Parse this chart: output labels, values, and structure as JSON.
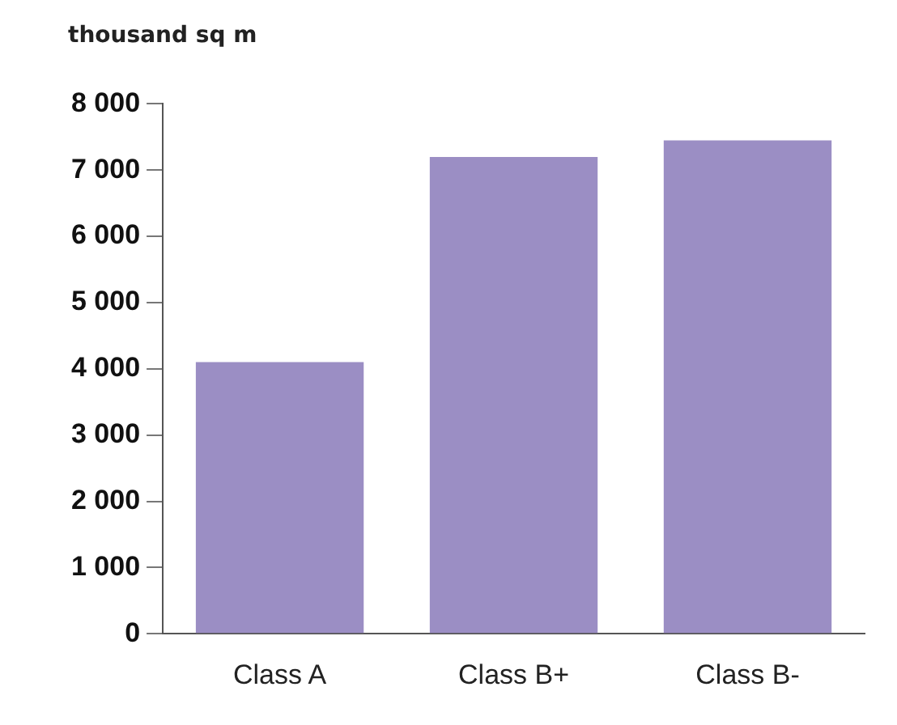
{
  "chart_data": {
    "type": "bar",
    "ylabel": "thousand sq m",
    "categories": [
      "Class A",
      "Class B+",
      "Class B-"
    ],
    "values": [
      4100,
      7200,
      7450
    ],
    "color": "#9b8ec4",
    "ylim": [
      0,
      8000
    ],
    "yticks": [
      0,
      1000,
      2000,
      3000,
      4000,
      5000,
      6000,
      7000,
      8000
    ],
    "grid": false,
    "legend": false
  }
}
